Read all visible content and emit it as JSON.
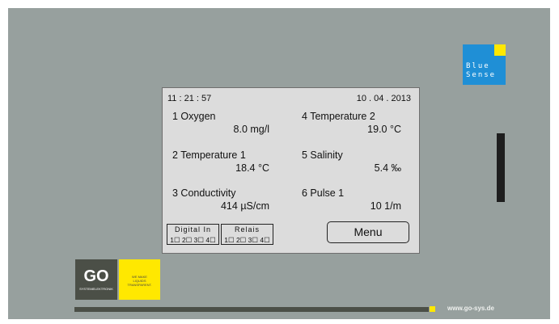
{
  "header": {
    "time": "11 : 21 : 57",
    "date": "10 . 04 . 2013"
  },
  "readings": [
    {
      "label": "1 Oxygen",
      "value": "8.0 mg/l"
    },
    {
      "label": "2 Temperature 1",
      "value": "18.4 °C"
    },
    {
      "label": "3 Conductivity",
      "value": "414 µS/cm"
    },
    {
      "label": "4 Temperature 2",
      "value": "19.0 °C"
    },
    {
      "label": "5 Salinity",
      "value": "5.4 ‰"
    },
    {
      "label": "6 Pulse 1",
      "value": "10 1/m"
    }
  ],
  "status": [
    {
      "title": "Digital In",
      "channels": "1☐ 2☐ 3☐ 4☐"
    },
    {
      "title": "Relais",
      "channels": "1☐ 2☐ 3☐ 4☐"
    }
  ],
  "menu": "Menu",
  "brand": {
    "blue": "Blue",
    "sense": "Sense",
    "go": "GO",
    "go_sub": "SYSTEMELEKTRONIK",
    "slogan": "WE MAKE LIQUIDS TRANSPARENT.",
    "url": "www.go-sys.de"
  }
}
